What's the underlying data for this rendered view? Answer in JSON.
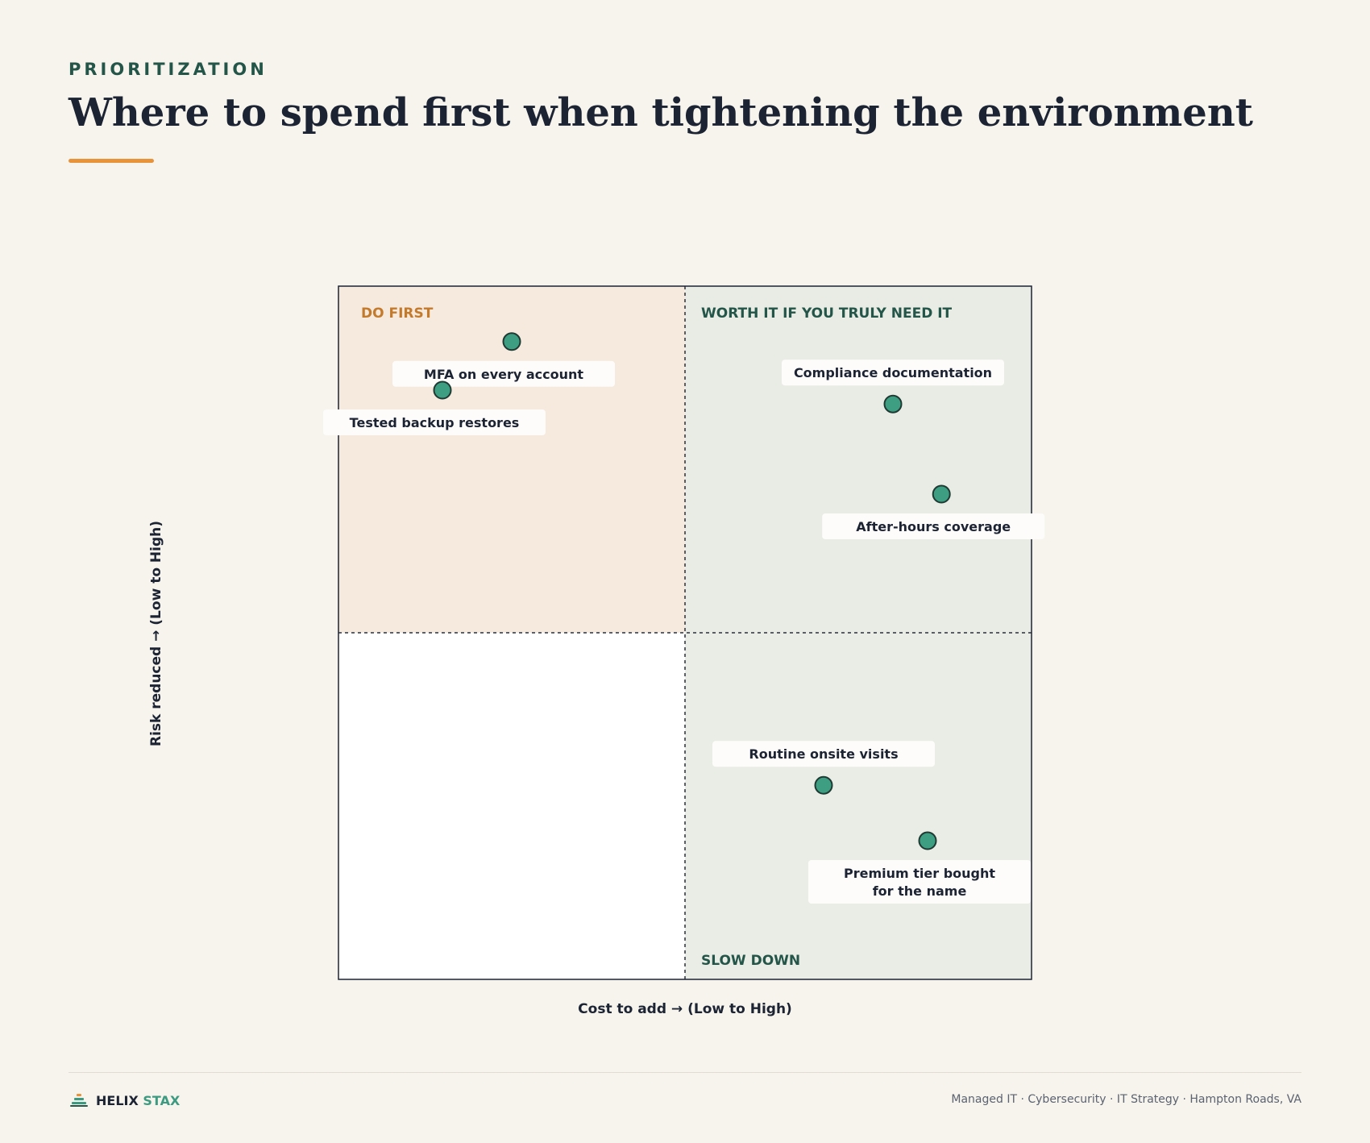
{
  "header": {
    "eyebrow": "PRIORITIZATION",
    "title": "Where to spend first when tightening the environment"
  },
  "colors": {
    "eyebrow": "#235548",
    "accent_rule": "#e8923a",
    "do_first_fill": "#f5eadd",
    "worth_it_fill": "#e8ece4",
    "slow_down_fill": "#eaede6",
    "low_low_fill": "#ffffff",
    "do_first_label": "#c47a2c",
    "quadrant_label": "#235548",
    "point_fill": "#3d9e82",
    "point_stroke": "#1f3a33",
    "label_bg": "#fdfcfa"
  },
  "chart_data": {
    "type": "scatter",
    "xlabel": "Cost to add → (Low to High)",
    "ylabel": "Risk reduced → (Low to High)",
    "xlim": [
      0,
      10
    ],
    "ylim": [
      0,
      10
    ],
    "grid": false,
    "divider": {
      "x": 5,
      "y": 5
    },
    "quadrants": [
      {
        "id": "do-first",
        "label": "DO FIRST",
        "x_range": [
          0,
          5
        ],
        "y_range": [
          5,
          10
        ],
        "label_anchor": "top-left"
      },
      {
        "id": "worth-it",
        "label": "WORTH IT IF YOU TRULY NEED IT",
        "x_range": [
          5,
          10
        ],
        "y_range": [
          5,
          10
        ],
        "label_anchor": "top-left"
      },
      {
        "id": "slow-down",
        "label": "SLOW DOWN",
        "x_range": [
          5,
          10
        ],
        "y_range": [
          0,
          5
        ],
        "label_anchor": "bottom-left"
      },
      {
        "id": "low-low",
        "label": "",
        "x_range": [
          0,
          5
        ],
        "y_range": [
          0,
          5
        ],
        "label_anchor": "top-left"
      }
    ],
    "points": [
      {
        "label": "MFA on every account",
        "x": 2.5,
        "y": 9.2,
        "label_position": "below"
      },
      {
        "label": "Tested backup restores",
        "x": 1.5,
        "y": 8.5,
        "label_position": "below"
      },
      {
        "label": "Compliance documentation",
        "x": 8.0,
        "y": 8.3,
        "label_position": "above"
      },
      {
        "label": "After-hours coverage",
        "x": 8.7,
        "y": 7.0,
        "label_position": "below"
      },
      {
        "label": "Routine onsite visits",
        "x": 7.0,
        "y": 2.8,
        "label_position": "above"
      },
      {
        "label": "Premium tier bought\nfor the name",
        "x": 8.5,
        "y": 2.0,
        "label_position": "below"
      }
    ]
  },
  "footer": {
    "brand_part1": "HELIX",
    "brand_part2": "STAX",
    "logo_icon": "stacked-layers-icon",
    "tagline": "Managed IT · Cybersecurity · IT Strategy · Hampton Roads, VA"
  }
}
